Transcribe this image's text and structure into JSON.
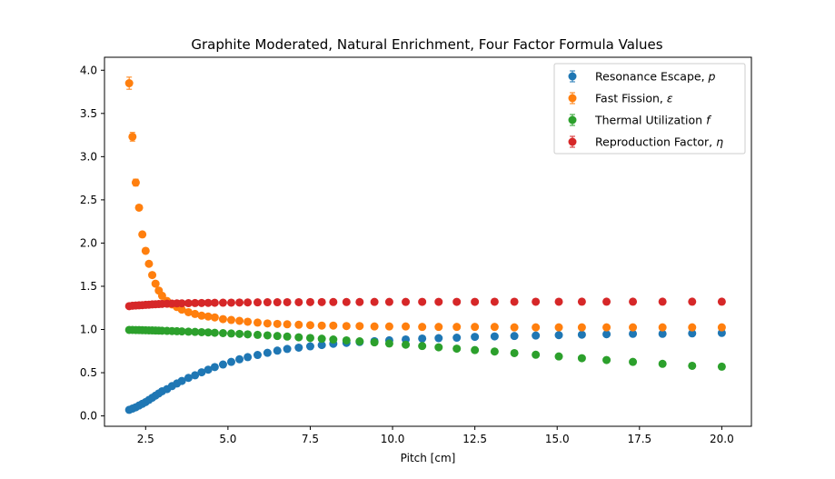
{
  "chart_data": {
    "type": "scatter",
    "title": "Graphite Moderated, Natural Enrichment, Four Factor Formula Values",
    "xlabel": "Pitch [cm]",
    "ylabel": "",
    "xlim": [
      1.25,
      20.9
    ],
    "ylim": [
      -0.12,
      4.15
    ],
    "xticks": [
      "2.5",
      "5.0",
      "7.5",
      "10.0",
      "12.5",
      "15.0",
      "17.5",
      "20.0"
    ],
    "yticks": [
      "0.0",
      "0.5",
      "1.0",
      "1.5",
      "2.0",
      "2.5",
      "3.0",
      "3.5",
      "4.0"
    ],
    "legend_position": "top-right",
    "grid": false,
    "error_bars": true,
    "x": [
      2.0,
      2.1,
      2.2,
      2.3,
      2.4,
      2.5,
      2.6,
      2.7,
      2.8,
      2.9,
      3.0,
      3.15,
      3.3,
      3.45,
      3.6,
      3.8,
      4.0,
      4.2,
      4.4,
      4.6,
      4.85,
      5.1,
      5.35,
      5.6,
      5.9,
      6.2,
      6.5,
      6.8,
      7.15,
      7.5,
      7.85,
      8.2,
      8.6,
      9.0,
      9.45,
      9.9,
      10.4,
      10.9,
      11.4,
      11.95,
      12.5,
      13.1,
      13.7,
      14.35,
      15.05,
      15.75,
      16.5,
      17.3,
      18.2,
      19.1,
      20.0
    ],
    "series": [
      {
        "name": "Resonance Escape, $p$",
        "color": "#1f77b4",
        "values": [
          0.07,
          0.085,
          0.1,
          0.12,
          0.14,
          0.16,
          0.185,
          0.21,
          0.235,
          0.26,
          0.285,
          0.31,
          0.345,
          0.375,
          0.405,
          0.44,
          0.47,
          0.505,
          0.535,
          0.565,
          0.595,
          0.625,
          0.655,
          0.68,
          0.705,
          0.73,
          0.755,
          0.775,
          0.79,
          0.805,
          0.82,
          0.835,
          0.845,
          0.855,
          0.865,
          0.875,
          0.885,
          0.895,
          0.9,
          0.905,
          0.915,
          0.92,
          0.925,
          0.93,
          0.935,
          0.94,
          0.945,
          0.95,
          0.95,
          0.955,
          0.96
        ],
        "errors": [
          0.02,
          0.02,
          0.02,
          0.015,
          0.015,
          0.015,
          0.015,
          0.015,
          0.01,
          0.01,
          0.01,
          0.01,
          0.01,
          0.01,
          0.01,
          0.01,
          0.01,
          0.01,
          0.01,
          0.01,
          0.01,
          0.01,
          0.01,
          0.01,
          0.01,
          0.01,
          0.01,
          0.01,
          0.01,
          0.01,
          0.01,
          0.01,
          0.01,
          0.01,
          0.01,
          0.01,
          0.01,
          0.01,
          0.01,
          0.01,
          0.01,
          0.01,
          0.01,
          0.01,
          0.01,
          0.01,
          0.01,
          0.01,
          0.01,
          0.01,
          0.01
        ]
      },
      {
        "name": "Fast Fission, $\\epsilon$",
        "color": "#ff7f0e",
        "values": [
          3.85,
          3.23,
          2.7,
          2.41,
          2.1,
          1.91,
          1.76,
          1.63,
          1.53,
          1.45,
          1.39,
          1.33,
          1.29,
          1.26,
          1.23,
          1.2,
          1.18,
          1.16,
          1.15,
          1.14,
          1.12,
          1.11,
          1.1,
          1.09,
          1.08,
          1.07,
          1.065,
          1.06,
          1.055,
          1.05,
          1.045,
          1.045,
          1.04,
          1.04,
          1.035,
          1.035,
          1.035,
          1.03,
          1.03,
          1.03,
          1.03,
          1.03,
          1.025,
          1.025,
          1.025,
          1.025,
          1.025,
          1.025,
          1.025,
          1.025,
          1.025
        ],
        "errors": [
          0.07,
          0.05,
          0.04,
          0.03,
          0.02,
          0.02,
          0.02,
          0.015,
          0.015,
          0.01,
          0.01,
          0.01,
          0.01,
          0.01,
          0.01,
          0.01,
          0.01,
          0.01,
          0.01,
          0.01,
          0.01,
          0.01,
          0.01,
          0.01,
          0.01,
          0.01,
          0.01,
          0.01,
          0.01,
          0.01,
          0.01,
          0.01,
          0.01,
          0.01,
          0.01,
          0.01,
          0.01,
          0.01,
          0.01,
          0.01,
          0.01,
          0.01,
          0.01,
          0.01,
          0.01,
          0.01,
          0.01,
          0.01,
          0.01,
          0.01,
          0.01
        ]
      },
      {
        "name": "Thermal Utilization $f$",
        "color": "#2ca02c",
        "values": [
          0.995,
          0.995,
          0.994,
          0.993,
          0.992,
          0.991,
          0.99,
          0.989,
          0.988,
          0.987,
          0.986,
          0.984,
          0.982,
          0.98,
          0.978,
          0.975,
          0.972,
          0.969,
          0.966,
          0.962,
          0.958,
          0.954,
          0.949,
          0.944,
          0.938,
          0.932,
          0.925,
          0.918,
          0.91,
          0.902,
          0.893,
          0.884,
          0.874,
          0.863,
          0.851,
          0.838,
          0.824,
          0.809,
          0.794,
          0.778,
          0.762,
          0.745,
          0.727,
          0.708,
          0.688,
          0.668,
          0.647,
          0.625,
          0.603,
          0.58,
          0.57
        ],
        "errors": [
          0.01,
          0.01,
          0.01,
          0.01,
          0.01,
          0.01,
          0.01,
          0.01,
          0.01,
          0.01,
          0.01,
          0.01,
          0.01,
          0.01,
          0.01,
          0.01,
          0.01,
          0.01,
          0.01,
          0.01,
          0.01,
          0.01,
          0.01,
          0.01,
          0.01,
          0.01,
          0.01,
          0.01,
          0.01,
          0.01,
          0.01,
          0.01,
          0.01,
          0.01,
          0.01,
          0.01,
          0.01,
          0.01,
          0.01,
          0.01,
          0.01,
          0.01,
          0.01,
          0.01,
          0.01,
          0.01,
          0.01,
          0.01,
          0.01,
          0.01,
          0.01
        ]
      },
      {
        "name": "Reproduction Factor, $\\eta$",
        "color": "#d62728",
        "values": [
          1.27,
          1.275,
          1.278,
          1.28,
          1.282,
          1.285,
          1.287,
          1.29,
          1.292,
          1.294,
          1.296,
          1.298,
          1.3,
          1.302,
          1.303,
          1.305,
          1.306,
          1.307,
          1.308,
          1.309,
          1.31,
          1.311,
          1.312,
          1.313,
          1.314,
          1.315,
          1.315,
          1.316,
          1.316,
          1.317,
          1.317,
          1.318,
          1.318,
          1.318,
          1.319,
          1.319,
          1.319,
          1.32,
          1.32,
          1.32,
          1.32,
          1.321,
          1.321,
          1.321,
          1.321,
          1.322,
          1.322,
          1.322,
          1.322,
          1.322,
          1.322
        ],
        "errors": [
          0.01,
          0.01,
          0.01,
          0.01,
          0.01,
          0.01,
          0.01,
          0.01,
          0.01,
          0.01,
          0.01,
          0.01,
          0.01,
          0.01,
          0.01,
          0.01,
          0.01,
          0.01,
          0.01,
          0.01,
          0.01,
          0.01,
          0.01,
          0.01,
          0.01,
          0.01,
          0.01,
          0.01,
          0.01,
          0.01,
          0.01,
          0.01,
          0.01,
          0.01,
          0.01,
          0.01,
          0.01,
          0.01,
          0.01,
          0.01,
          0.01,
          0.01,
          0.01,
          0.01,
          0.01,
          0.01,
          0.01,
          0.01,
          0.01,
          0.01,
          0.01
        ]
      }
    ]
  }
}
